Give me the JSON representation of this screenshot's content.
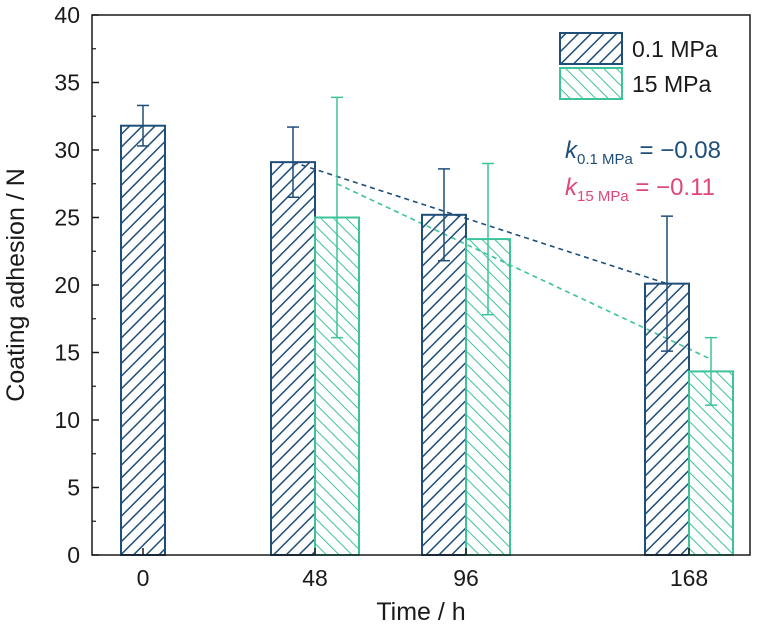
{
  "chart_data": {
    "type": "bar",
    "categories": [
      "0",
      "48",
      "96",
      "168"
    ],
    "xlabel": "Time / h",
    "ylabel": "Coating adhesion / N",
    "ylim": [
      0,
      40
    ],
    "yticks": [
      0,
      5,
      10,
      15,
      20,
      25,
      30,
      35,
      40
    ],
    "series": [
      {
        "name": "0.1 MPa",
        "color": "#1f4e79",
        "hatch": "forward-diagonal",
        "values": [
          31.8,
          29.1,
          25.2,
          20.1
        ],
        "errors": [
          1.5,
          2.6,
          3.4,
          5.0
        ]
      },
      {
        "name": "15 MPa",
        "color": "#3cc39a",
        "hatch": "backward-diagonal",
        "values": [
          null,
          25.0,
          23.4,
          13.6
        ],
        "errors": [
          null,
          8.9,
          5.6,
          2.5
        ]
      }
    ],
    "trend_lines": [
      {
        "series": "0.1 MPa",
        "from": {
          "x": "48",
          "y": 29.1
        },
        "to": {
          "x": "168",
          "y": 20.1
        },
        "style": "dashed"
      },
      {
        "series": "15 MPa",
        "from": {
          "x": "48",
          "y": 27.5
        },
        "to": {
          "x": "168",
          "y": 14.5
        },
        "style": "dashed"
      }
    ],
    "annotations": [
      {
        "symbol": "k",
        "subscript": "0.1 MPa",
        "text": " = −0.08",
        "color": "#1f4e79"
      },
      {
        "symbol": "k",
        "subscript": "15 MPa",
        "text": " = −0.11",
        "color": "#e0457b"
      }
    ],
    "legend_position": "top-right",
    "grid": false
  }
}
